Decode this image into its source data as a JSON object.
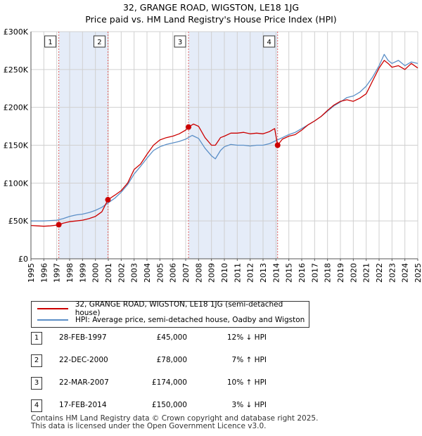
{
  "header": {
    "title_line1": "32, GRANGE ROAD, WIGSTON, LE18 1JG",
    "title_line2": "Price paid vs. HM Land Registry's House Price Index (HPI)"
  },
  "colors": {
    "property": "#cc0000",
    "hpi": "#5b8fc7",
    "shade": "#dce6f5",
    "vline": "#e06060"
  },
  "legend": {
    "property_label": "32, GRANGE ROAD, WIGSTON, LE18 1JG (semi-detached house)",
    "hpi_label": "HPI: Average price, semi-detached house, Oadby and Wigston"
  },
  "sales": [
    {
      "num": "1",
      "date": "28-FEB-1997",
      "price": "£45,000",
      "hpi": "12% ↓ HPI"
    },
    {
      "num": "2",
      "date": "22-DEC-2000",
      "price": "£78,000",
      "hpi": "7% ↑ HPI"
    },
    {
      "num": "3",
      "date": "22-MAR-2007",
      "price": "£174,000",
      "hpi": "10% ↑ HPI"
    },
    {
      "num": "4",
      "date": "17-FEB-2014",
      "price": "£150,000",
      "hpi": "3% ↓ HPI"
    }
  ],
  "footer": {
    "line1": "Contains HM Land Registry data © Crown copyright and database right 2025.",
    "line2": "This data is licensed under the Open Government Licence v3.0."
  },
  "chart_data": {
    "type": "line",
    "title": "32, GRANGE ROAD, WIGSTON, LE18 1JG",
    "subtitle": "Price paid vs. HM Land Registry's House Price Index (HPI)",
    "xlabel": "",
    "ylabel": "",
    "xlim": [
      1995,
      2025
    ],
    "ylim": [
      0,
      300000
    ],
    "grid": true,
    "y_ticks": [
      {
        "value": 0,
        "label": "£0"
      },
      {
        "value": 50000,
        "label": "£50K"
      },
      {
        "value": 100000,
        "label": "£100K"
      },
      {
        "value": 150000,
        "label": "£150K"
      },
      {
        "value": 200000,
        "label": "£200K"
      },
      {
        "value": 250000,
        "label": "£250K"
      },
      {
        "value": 300000,
        "label": "£300K"
      }
    ],
    "x_ticks": [
      "1995",
      "1996",
      "1997",
      "1998",
      "1999",
      "2000",
      "2001",
      "2002",
      "2003",
      "2004",
      "2005",
      "2006",
      "2007",
      "2008",
      "2009",
      "2010",
      "2011",
      "2012",
      "2013",
      "2014",
      "2015",
      "2016",
      "2017",
      "2018",
      "2019",
      "2020",
      "2021",
      "2022",
      "2023",
      "2024",
      "2025"
    ],
    "shaded_ranges": [
      [
        1997.16,
        2000.97
      ],
      [
        2007.22,
        2014.13
      ]
    ],
    "sale_markers": [
      {
        "label": "1",
        "x": 1997.16,
        "y": 45000
      },
      {
        "label": "2",
        "x": 2000.97,
        "y": 78000
      },
      {
        "label": "3",
        "x": 2007.22,
        "y": 174000
      },
      {
        "label": "4",
        "x": 2014.13,
        "y": 150000
      }
    ],
    "series": [
      {
        "name": "32, GRANGE ROAD, WIGSTON, LE18 1JG (semi-detached house)",
        "x": [
          1995.0,
          1995.5,
          1996.0,
          1996.5,
          1997.0,
          1997.16,
          1997.5,
          1998.0,
          1998.5,
          1999.0,
          1999.5,
          2000.0,
          2000.5,
          2000.97,
          2001.5,
          2002.0,
          2002.5,
          2003.0,
          2003.5,
          2004.0,
          2004.5,
          2005.0,
          2005.5,
          2006.0,
          2006.5,
          2007.0,
          2007.22,
          2007.6,
          2008.0,
          2008.5,
          2009.0,
          2009.3,
          2009.7,
          2010.0,
          2010.5,
          2011.0,
          2011.5,
          2012.0,
          2012.5,
          2013.0,
          2013.5,
          2013.9,
          2014.13,
          2014.5,
          2015.0,
          2015.5,
          2016.0,
          2016.5,
          2017.0,
          2017.5,
          2018.0,
          2018.5,
          2019.0,
          2019.5,
          2020.0,
          2020.5,
          2021.0,
          2021.5,
          2022.0,
          2022.4,
          2022.7,
          2023.0,
          2023.5,
          2024.0,
          2024.5,
          2025.0
        ],
        "values": [
          44000,
          43500,
          43000,
          43500,
          44500,
          45000,
          47000,
          49000,
          50000,
          51000,
          53000,
          56000,
          62000,
          78000,
          84000,
          90000,
          100000,
          118000,
          125000,
          138000,
          150000,
          157000,
          160000,
          162000,
          165000,
          170000,
          174000,
          178000,
          175000,
          160000,
          150000,
          150000,
          160000,
          162000,
          166000,
          166000,
          167000,
          165000,
          166000,
          165000,
          168000,
          172000,
          150000,
          158000,
          162000,
          164000,
          170000,
          177000,
          182000,
          188000,
          196000,
          203000,
          208000,
          210000,
          208000,
          212000,
          218000,
          235000,
          252000,
          262000,
          258000,
          253000,
          255000,
          250000,
          258000,
          252000
        ]
      },
      {
        "name": "HPI: Average price, semi-detached house, Oadby and Wigston",
        "x": [
          1995.0,
          1995.5,
          1996.0,
          1996.5,
          1997.0,
          1997.5,
          1998.0,
          1998.5,
          1999.0,
          1999.5,
          2000.0,
          2000.5,
          2001.0,
          2001.5,
          2002.0,
          2002.5,
          2003.0,
          2003.5,
          2004.0,
          2004.5,
          2005.0,
          2005.5,
          2006.0,
          2006.5,
          2007.0,
          2007.5,
          2008.0,
          2008.5,
          2009.0,
          2009.3,
          2009.7,
          2010.0,
          2010.5,
          2011.0,
          2011.5,
          2012.0,
          2012.5,
          2013.0,
          2013.5,
          2014.0,
          2014.5,
          2015.0,
          2015.5,
          2016.0,
          2016.5,
          2017.0,
          2017.5,
          2018.0,
          2018.5,
          2019.0,
          2019.5,
          2020.0,
          2020.5,
          2021.0,
          2021.5,
          2022.0,
          2022.4,
          2022.7,
          2023.0,
          2023.5,
          2024.0,
          2024.5,
          2025.0
        ],
        "values": [
          50000,
          50000,
          50000,
          50500,
          51000,
          53000,
          56000,
          58000,
          59000,
          61000,
          64000,
          68000,
          74000,
          80000,
          88000,
          98000,
          112000,
          122000,
          133000,
          143000,
          148000,
          151000,
          153000,
          155000,
          158000,
          163000,
          159000,
          146000,
          136000,
          132000,
          143000,
          148000,
          151000,
          150000,
          150000,
          149000,
          150000,
          150000,
          152000,
          156000,
          160000,
          164000,
          167000,
          172000,
          177000,
          182000,
          188000,
          195000,
          202000,
          207000,
          213000,
          215000,
          220000,
          228000,
          240000,
          255000,
          270000,
          262000,
          258000,
          262000,
          255000,
          260000,
          258000
        ]
      }
    ]
  }
}
